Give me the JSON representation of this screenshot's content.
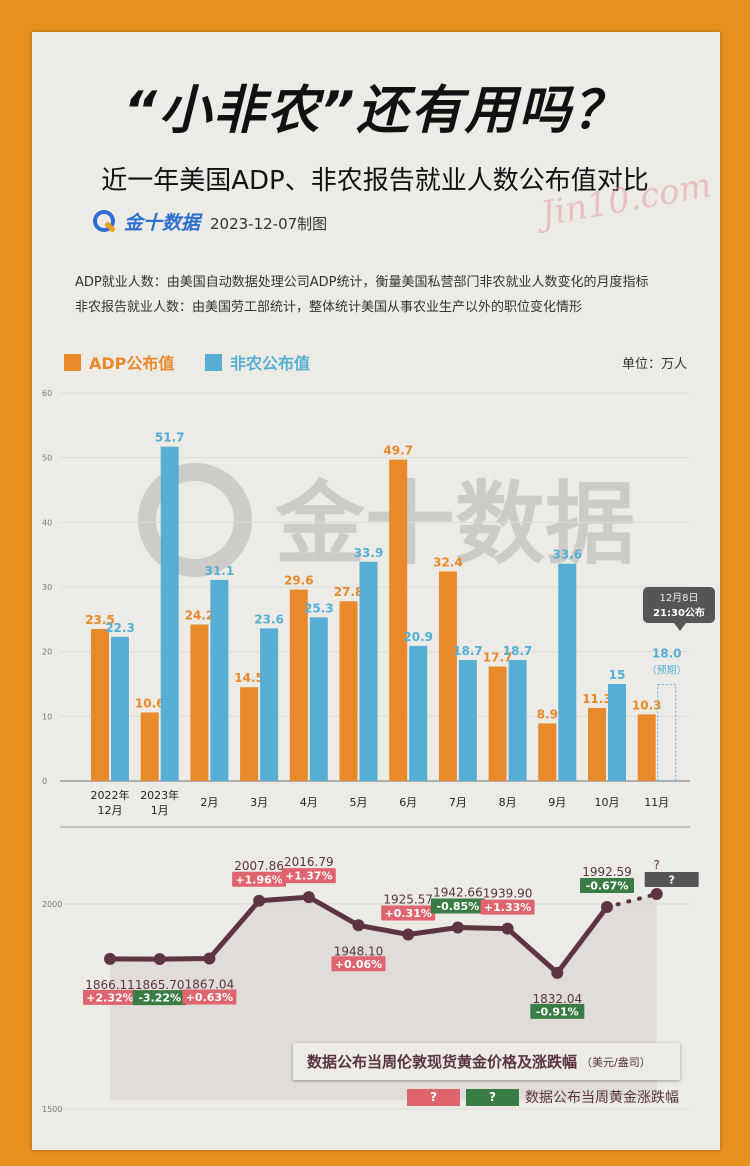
{
  "title": "“小非农”还有用吗？",
  "subtitle": "近一年美国ADP、非农报告就业人数公布值对比",
  "brand": "金十数据",
  "date": "2023-12-07制图",
  "watermark": "Jin10.com",
  "desc": [
    "ADP就业人数：由美国自动数据处理公司ADP统计，衡量美国私营部门非农就业人数变化的月度指标",
    "非农报告就业人数：由美国劳工部统计，整体统计美国从事农业生产以外的职位变化情形"
  ],
  "colors": {
    "adp": "#e8892a",
    "nfp": "#56aed4",
    "up": "#e0646e",
    "down": "#3a7d44",
    "line": "#5e3442"
  },
  "chart_data": [
    {
      "type": "bar",
      "title": "近一年美国ADP、非农报告就业人数公布值对比",
      "unit": "单位：万人",
      "ylim": [
        0,
        60
      ],
      "yticks": [
        0,
        10,
        20,
        30,
        40,
        50,
        60
      ],
      "categories": [
        [
          "2022年",
          "12月"
        ],
        [
          "2023年",
          "1月"
        ],
        [
          "2月"
        ],
        [
          "3月"
        ],
        [
          "4月"
        ],
        [
          "5月"
        ],
        [
          "6月"
        ],
        [
          "7月"
        ],
        [
          "8月"
        ],
        [
          "9月"
        ],
        [
          "10月"
        ],
        [
          "11月"
        ]
      ],
      "series": [
        {
          "name": "ADP公布值",
          "values": [
            23.5,
            10.6,
            24.2,
            14.5,
            29.6,
            27.8,
            49.7,
            32.4,
            17.7,
            8.9,
            11.3,
            10.3
          ]
        },
        {
          "name": "非农公布值",
          "values": [
            22.3,
            51.7,
            31.1,
            23.6,
            25.3,
            33.9,
            20.9,
            18.7,
            18.7,
            33.6,
            15,
            null
          ],
          "forecast": {
            "value": 18.0,
            "label": "18.0",
            "note": "（预期）"
          }
        }
      ],
      "callout": [
        "12月8日",
        "21:30公布"
      ]
    },
    {
      "type": "line",
      "title": "数据公布当周伦敦现货黄金价格及涨跌幅",
      "unit": "（美元/盎司）",
      "ylim": [
        1500,
        2100
      ],
      "yticks": [
        1500,
        2000
      ],
      "values": [
        1866.11,
        1865.7,
        1867.04,
        2007.86,
        2016.79,
        1948.1,
        1925.57,
        1942.66,
        1939.9,
        1832.04,
        1992.59,
        null
      ],
      "labels": [
        "1866.11",
        "1865.70",
        "1867.04",
        "2007.86",
        "2016.79",
        "1948.10",
        "1925.57",
        "1942.66",
        "1939.90",
        "1832.04",
        "1992.59",
        "?"
      ],
      "changes": [
        "+2.32%",
        "-3.22%",
        "+0.63%",
        "+1.96%",
        "+1.37%",
        "+0.06%",
        "+0.31%",
        "-0.85%",
        "+1.33%",
        "-0.91%",
        "-0.67%",
        "?"
      ],
      "legend": {
        "up": "?",
        "down": "?",
        "label": "数据公布当周黄金涨跌幅"
      }
    }
  ]
}
